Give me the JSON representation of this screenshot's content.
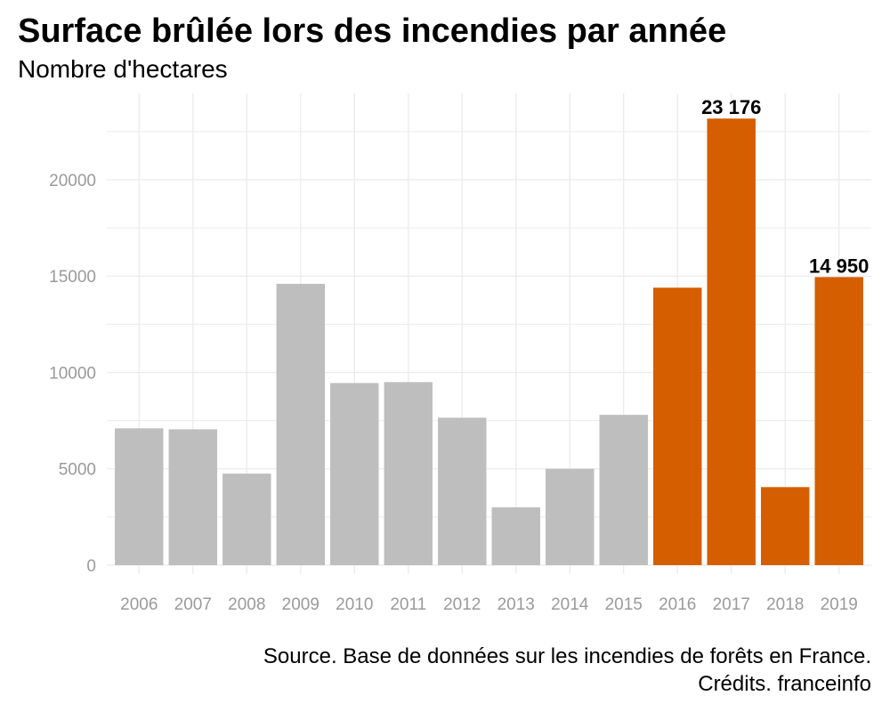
{
  "chart_data": {
    "type": "bar",
    "title": "Surface brûlée lors des incendies par année",
    "subtitle": "Nombre d'hectares",
    "xlabel": "",
    "ylabel": "",
    "categories": [
      "2006",
      "2007",
      "2008",
      "2009",
      "2010",
      "2011",
      "2012",
      "2013",
      "2014",
      "2015",
      "2016",
      "2017",
      "2018",
      "2019"
    ],
    "values": [
      7100,
      7050,
      4750,
      14600,
      9450,
      9500,
      7650,
      3000,
      5000,
      7800,
      14400,
      23176,
      4050,
      14950
    ],
    "highlighted": [
      false,
      false,
      false,
      false,
      false,
      false,
      false,
      false,
      false,
      false,
      true,
      true,
      true,
      true
    ],
    "data_labels": {
      "2017": "23 176",
      "2019": "14 950"
    },
    "ylim": [
      0,
      24480
    ],
    "yticks": [
      0,
      5000,
      10000,
      15000,
      20000
    ],
    "ytick_labels": [
      "0",
      "5000",
      "10000",
      "15000",
      "20000"
    ],
    "grid": true,
    "colors": {
      "default": "#bebebe",
      "highlight": "#d55e00",
      "grid": "#ebebeb",
      "tick_text": "#9a9a9a"
    }
  },
  "caption": {
    "source": "Source. Base de données sur les incendies de forêts en France.",
    "credits": "Crédits. franceinfo"
  }
}
